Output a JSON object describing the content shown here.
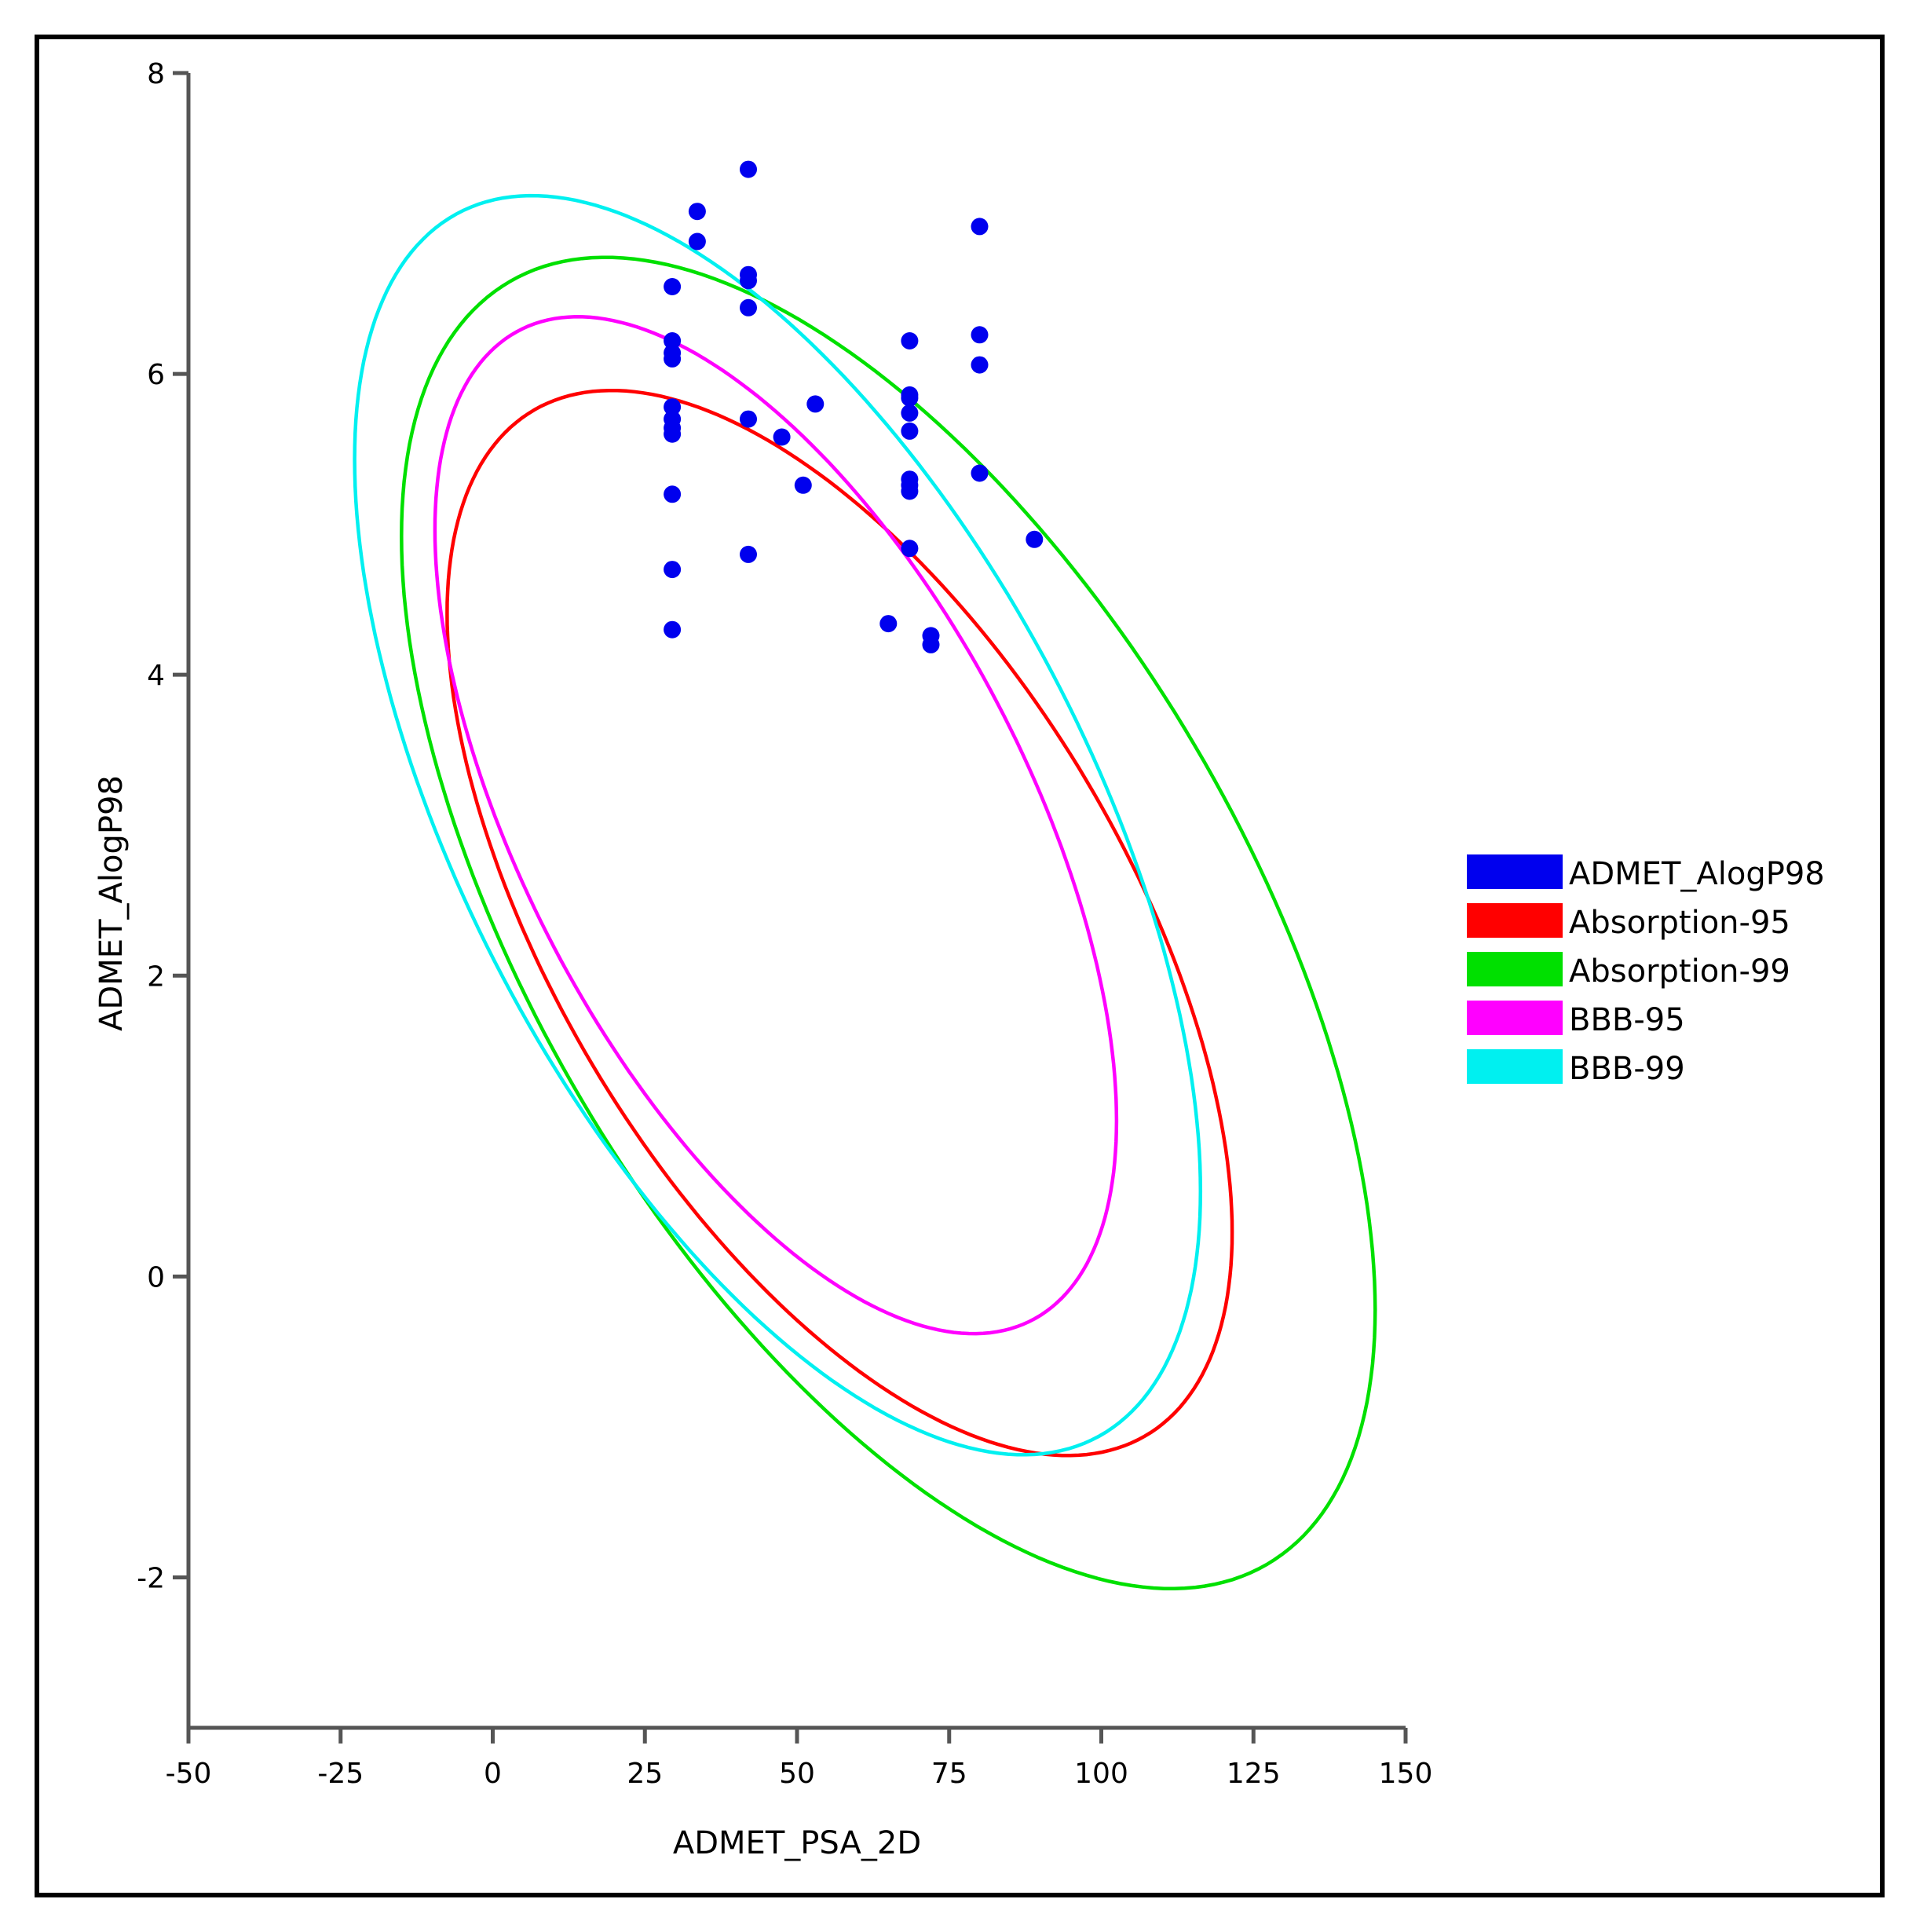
{
  "chart_data": {
    "type": "scatter",
    "title": "",
    "xlabel": "ADMET_PSA_2D",
    "ylabel": "ADMET_AlogP98",
    "xlim": [
      -50,
      150
    ],
    "ylim": [
      -3,
      8
    ],
    "xticks": [
      -50,
      -25,
      0,
      25,
      50,
      75,
      100,
      125,
      150
    ],
    "yticks": [
      -2,
      0,
      2,
      4,
      6,
      8
    ],
    "legend_position": "right",
    "series": [
      {
        "name": "ADMET_AlogP98",
        "kind": "points",
        "color": "#0000ee",
        "points": [
          [
            42,
            7.36
          ],
          [
            33.6,
            7.08
          ],
          [
            80,
            6.98
          ],
          [
            33.6,
            6.88
          ],
          [
            42,
            6.66
          ],
          [
            42,
            6.62
          ],
          [
            29.5,
            6.58
          ],
          [
            42,
            6.44
          ],
          [
            80,
            6.26
          ],
          [
            29.5,
            6.22
          ],
          [
            68.5,
            6.22
          ],
          [
            29.5,
            6.14
          ],
          [
            29.5,
            6.1
          ],
          [
            80,
            6.06
          ],
          [
            68.5,
            5.86
          ],
          [
            68.5,
            5.84
          ],
          [
            53,
            5.8
          ],
          [
            29.5,
            5.78
          ],
          [
            68.5,
            5.74
          ],
          [
            42,
            5.7
          ],
          [
            29.5,
            5.7
          ],
          [
            29.5,
            5.64
          ],
          [
            68.5,
            5.62
          ],
          [
            29.5,
            5.6
          ],
          [
            47.5,
            5.58
          ],
          [
            80,
            5.34
          ],
          [
            68.5,
            5.3
          ],
          [
            68.5,
            5.26
          ],
          [
            51,
            5.26
          ],
          [
            68.5,
            5.22
          ],
          [
            29.5,
            5.2
          ],
          [
            89,
            4.9
          ],
          [
            68.5,
            4.84
          ],
          [
            42,
            4.8
          ],
          [
            29.5,
            4.7
          ],
          [
            65,
            4.34
          ],
          [
            29.5,
            4.3
          ],
          [
            72,
            4.26
          ],
          [
            72,
            4.2
          ]
        ]
      },
      {
        "name": "Absorption-95",
        "kind": "ellipse",
        "color": "#ff0000",
        "ellipse": {
          "center": [
            57,
            2.35
          ],
          "extent_x": [
            -1,
            128
          ],
          "extent_y": [
            -1.2,
            5.88
          ]
        }
      },
      {
        "name": "Absorption-99",
        "kind": "ellipse",
        "color": "#00e000",
        "ellipse": {
          "center": [
            65,
            2.35
          ],
          "extent_x": [
            -16,
            144
          ],
          "extent_y": [
            -2.1,
            6.75
          ]
        }
      },
      {
        "name": "BBB-95",
        "kind": "ellipse",
        "color": "#ff00ff",
        "ellipse": {
          "center": [
            46.5,
            3.0
          ],
          "extent_x": [
            -13,
            99
          ],
          "extent_y": [
            -0.4,
            6.36
          ]
        }
      },
      {
        "name": "BBB-99",
        "kind": "ellipse",
        "color": "#00f0f0",
        "ellipse": {
          "center": [
            46.8,
            3.0
          ],
          "extent_x": [
            -27,
            112
          ],
          "extent_y": [
            -1.2,
            7.17
          ]
        }
      }
    ]
  }
}
